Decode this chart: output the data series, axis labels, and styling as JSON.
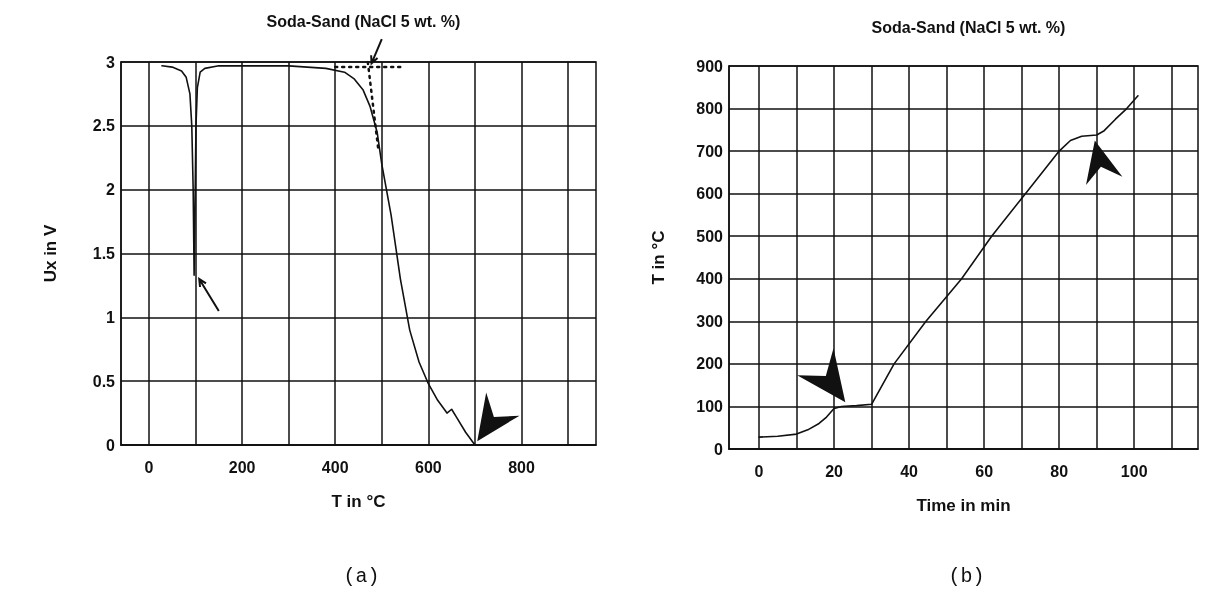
{
  "chart_data": [
    {
      "type": "line",
      "title": "Soda-Sand (NaCl 5 wt. %)",
      "xlabel": "T in °C",
      "ylabel": "Ux in V",
      "annotations": [
        "(a)"
      ],
      "xlim": [
        -60,
        960
      ],
      "xticks": [
        0,
        {
          "value": 100,
          "label": null
        },
        200,
        {
          "value": 300,
          "label": null
        },
        400,
        {
          "value": 500,
          "label": null
        },
        600,
        {
          "value": 700,
          "label": null
        },
        800,
        {
          "value": 900,
          "label": null
        }
      ],
      "ylim": [
        0,
        3
      ],
      "yticks": [
        0,
        0.5,
        1,
        1.5,
        2,
        2.5,
        3
      ],
      "grid": true,
      "marker": "none",
      "series": [
        {
          "color": "#111111",
          "line_style": "solid",
          "x": [
            28,
            50,
            70,
            80,
            88,
            92,
            95,
            97,
            99,
            101,
            104,
            110,
            120,
            150,
            200,
            300,
            380,
            420,
            440,
            460,
            475,
            490,
            500,
            510,
            520,
            540,
            560,
            580,
            600,
            620,
            640,
            650,
            660,
            680,
            700,
            740,
            780
          ],
          "values": [
            2.97,
            2.96,
            2.93,
            2.88,
            2.75,
            2.5,
            2.0,
            1.33,
            1.9,
            2.5,
            2.8,
            2.92,
            2.95,
            2.97,
            2.97,
            2.97,
            2.95,
            2.92,
            2.87,
            2.78,
            2.65,
            2.45,
            2.2,
            2.0,
            1.8,
            1.3,
            0.9,
            0.65,
            0.48,
            0.35,
            0.25,
            0.28,
            0.22,
            0.1,
            0.0,
            0.0,
            0.0
          ]
        },
        {
          "color": "#111111",
          "line_style": "dotted",
          "x": [
            400,
            540
          ],
          "values": [
            2.96,
            2.96
          ]
        },
        {
          "color": "#111111",
          "line_style": "dotted",
          "x": [
            470,
            493
          ],
          "values": [
            3.0,
            2.3
          ]
        }
      ]
    },
    {
      "type": "line",
      "title": "Soda-Sand (NaCl 5 wt. %)",
      "xlabel": "Time in min",
      "ylabel": "T in °C",
      "annotations": [
        "(b)"
      ],
      "xlim": [
        -8,
        117
      ],
      "xticks": [
        0,
        {
          "value": 10,
          "label": null
        },
        20,
        {
          "value": 30,
          "label": null
        },
        40,
        {
          "value": 50,
          "label": null
        },
        60,
        {
          "value": 70,
          "label": null
        },
        80,
        {
          "value": 90,
          "label": null
        },
        100,
        {
          "value": 110,
          "label": null
        }
      ],
      "ylim": [
        0,
        900
      ],
      "yticks": [
        0,
        100,
        200,
        300,
        400,
        500,
        600,
        700,
        800,
        900
      ],
      "grid": true,
      "marker": "none",
      "series": [
        {
          "color": "#111111",
          "line_style": "solid",
          "x": [
            0,
            5,
            10,
            13,
            16,
            18,
            20,
            22,
            26,
            30,
            36,
            44.5,
            54,
            62,
            71,
            80,
            83,
            86,
            90,
            92,
            95,
            98,
            101
          ],
          "values": [
            28,
            30,
            35,
            45,
            60,
            75,
            95,
            100,
            102,
            105,
            200,
            300,
            400,
            500,
            600,
            700,
            725,
            735,
            738,
            748,
            775,
            800,
            830
          ]
        }
      ]
    }
  ]
}
